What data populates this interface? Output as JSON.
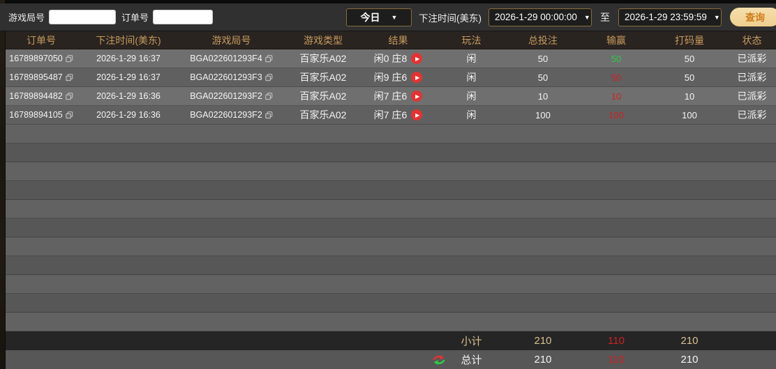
{
  "toolbar": {
    "game_round_label": "游戏局号",
    "order_no_label": "订单号",
    "range_selected": "今日",
    "bet_time_label": "下注时间(美东)",
    "date_from": "2026-1-29 00:00:00",
    "to_label": "至",
    "date_to": "2026-1-29 23:59:59",
    "query_label": "查询"
  },
  "icons": {
    "dropdown_arrow": "▼",
    "play": "▶"
  },
  "colors": {
    "win_green": "#2ecc44",
    "loss_red": "#cc2222",
    "header_gold": "#c59a5e",
    "accent_gold_border": "#8a6c3c",
    "query_button_bg": "#eecf8e",
    "query_button_text": "#cf7c1c"
  },
  "table": {
    "columns": [
      "订单号",
      "下注时间(美东)",
      "游戏局号",
      "游戏类型",
      "结果",
      "玩法",
      "总投注",
      "输赢",
      "打码量",
      "状态"
    ],
    "rows": [
      {
        "order_no": "16789897050",
        "bet_time": "2026-1-29 16:37",
        "round_no": "BGA022601293F4",
        "game_type": "百家乐A02",
        "result": "闲0 庄8",
        "play": "闲",
        "total_bet": "50",
        "win_lose": "50",
        "win_positive": true,
        "turnover": "50",
        "status": "已派彩"
      },
      {
        "order_no": "16789895487",
        "bet_time": "2026-1-29 16:37",
        "round_no": "BGA022601293F3",
        "game_type": "百家乐A02",
        "result": "闲9 庄6",
        "play": "闲",
        "total_bet": "50",
        "win_lose": "50",
        "win_positive": false,
        "turnover": "50",
        "status": "已派彩"
      },
      {
        "order_no": "16789894482",
        "bet_time": "2026-1-29 16:36",
        "round_no": "BGA022601293F2",
        "game_type": "百家乐A02",
        "result": "闲7 庄6",
        "play": "闲",
        "total_bet": "10",
        "win_lose": "10",
        "win_positive": false,
        "turnover": "10",
        "status": "已派彩"
      },
      {
        "order_no": "16789894105",
        "bet_time": "2026-1-29 16:36",
        "round_no": "BGA022601293F2",
        "game_type": "百家乐A02",
        "result": "闲7 庄6",
        "play": "闲",
        "total_bet": "100",
        "win_lose": "100",
        "win_positive": false,
        "turnover": "100",
        "status": "已派彩"
      }
    ],
    "empty_row_count": 11,
    "subtotal": {
      "label": "小计",
      "total_bet": "210",
      "win_lose": "110",
      "turnover": "210"
    },
    "total": {
      "label": "总计",
      "total_bet": "210",
      "win_lose": "110",
      "turnover": "210"
    }
  }
}
